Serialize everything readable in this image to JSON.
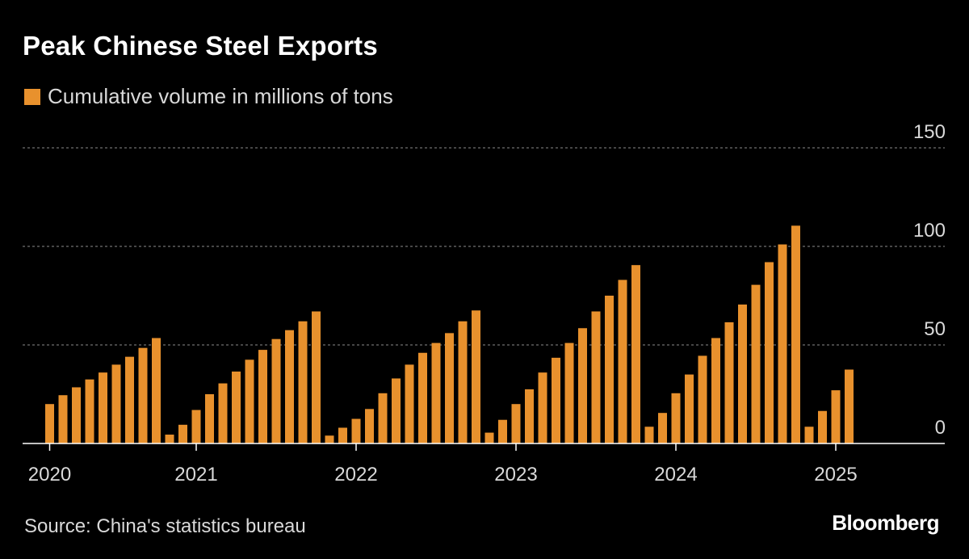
{
  "title": "Peak Chinese Steel Exports",
  "source": "Source: China's statistics bureau",
  "brand": "Bloomberg",
  "colors": {
    "background": "#000000",
    "bar": "#e8912d",
    "grid": "#8c8c8c",
    "axis": "#ffffff",
    "text": "#d9d9d9"
  },
  "chart_data": {
    "type": "bar",
    "title": "Peak Chinese Steel Exports",
    "ylabel": "",
    "xlabel": "",
    "ylim": [
      0,
      150
    ],
    "yticks": [
      0,
      50,
      100,
      150
    ],
    "grid": true,
    "legend_position": "top-left",
    "year_ticks": [
      "2020",
      "2021",
      "2022",
      "2023",
      "2024",
      "2025"
    ],
    "series": [
      {
        "name": "Cumulative volume in millions of tons",
        "color": "#e8912d",
        "values": [
          20,
          24.5,
          28.5,
          32.5,
          36,
          40,
          44,
          48.5,
          53.5,
          4.5,
          9.5,
          17,
          25,
          30.5,
          36.5,
          42.5,
          47.5,
          53,
          57.5,
          62,
          67,
          4,
          8,
          12.5,
          17.5,
          25.5,
          33,
          40,
          46,
          51,
          56,
          62,
          67.5,
          5.5,
          12,
          20,
          27.5,
          36,
          43.5,
          51,
          58.5,
          67,
          75,
          83,
          90.5,
          8.5,
          15.5,
          25.5,
          35,
          44.5,
          53.5,
          61.5,
          70.5,
          80.5,
          92,
          101,
          110.5,
          8.5,
          16.5,
          27,
          37.5
        ]
      }
    ]
  }
}
